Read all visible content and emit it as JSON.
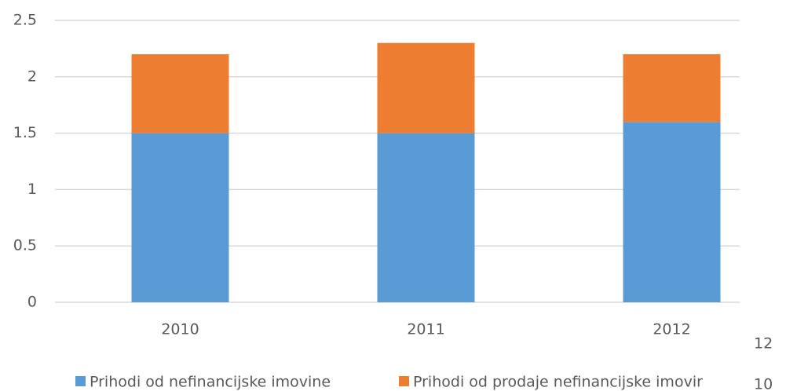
{
  "chart_data": {
    "type": "bar",
    "stacked": true,
    "categories": [
      "2010",
      "2011",
      "2012"
    ],
    "series": [
      {
        "name": "Prihodi od nefinancijske imovine",
        "color": "#5b9bd5",
        "values": [
          1.5,
          1.5,
          1.6
        ]
      },
      {
        "name": "Prihodi od prodaje nefinancijske imovir",
        "color": "#ed7d31",
        "values": [
          0.7,
          0.8,
          0.6
        ]
      }
    ],
    "ylim": [
      0,
      2.5
    ],
    "yticks": [
      0,
      0.5,
      1,
      1.5,
      2,
      2.5
    ],
    "grid": true,
    "legend": "bottom",
    "annotations": [
      "12",
      "10"
    ]
  }
}
